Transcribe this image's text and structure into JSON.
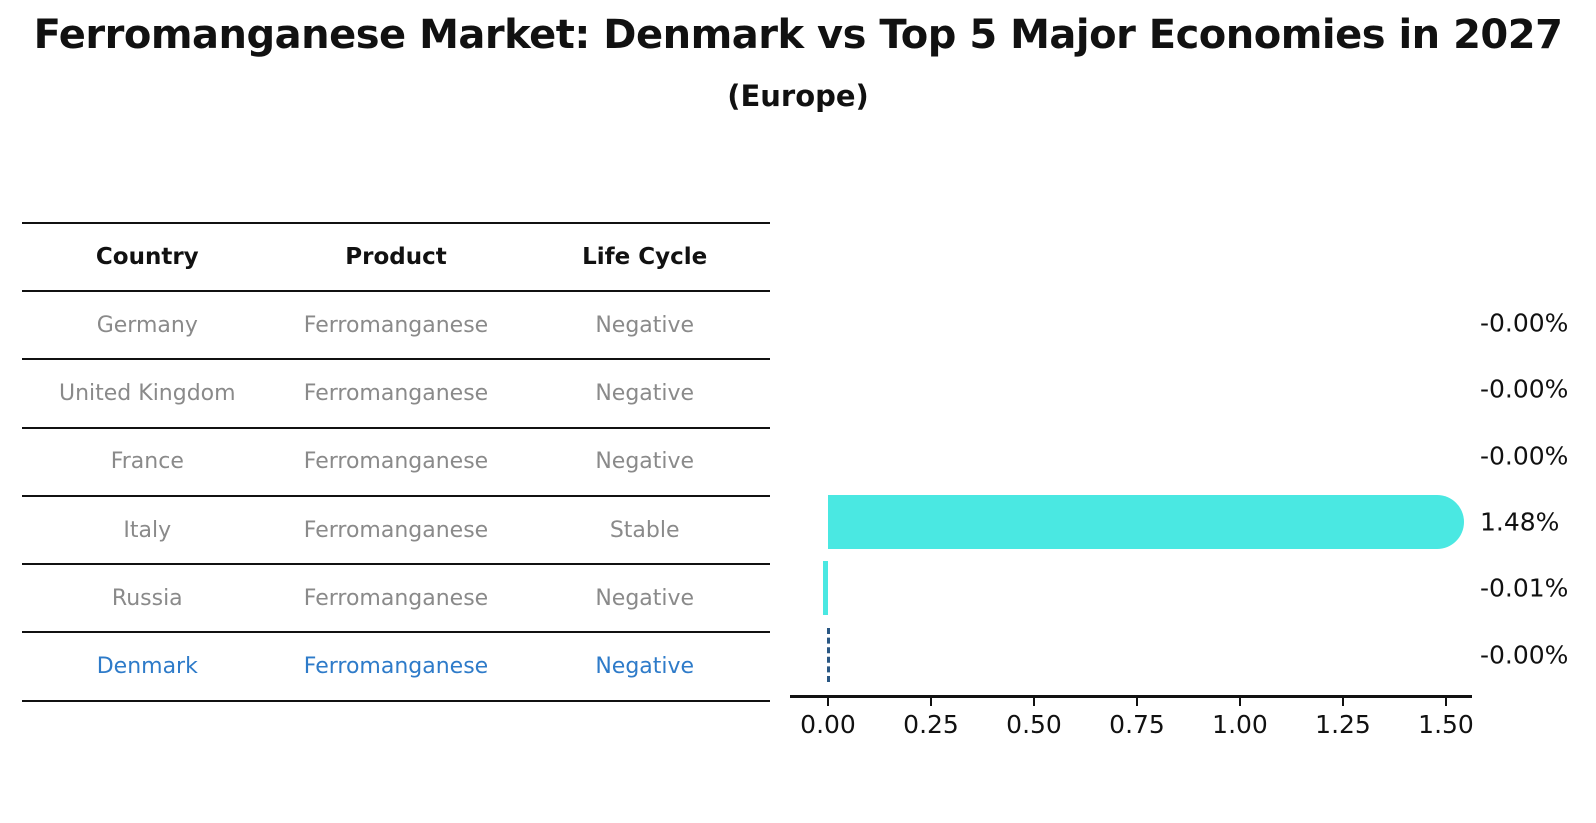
{
  "title": "Ferromanganese Market: Denmark vs Top 5 Major Economies in 2027",
  "subtitle": "(Europe)",
  "table": {
    "headers": [
      "Country",
      "Product",
      "Life Cycle"
    ],
    "rows": [
      {
        "country": "Germany",
        "product": "Ferromanganese",
        "life_cycle": "Negative",
        "highlighted": false
      },
      {
        "country": "United Kingdom",
        "product": "Ferromanganese",
        "life_cycle": "Negative",
        "highlighted": false
      },
      {
        "country": "France",
        "product": "Ferromanganese",
        "life_cycle": "Negative",
        "highlighted": false
      },
      {
        "country": "Italy",
        "product": "Ferromanganese",
        "life_cycle": "Stable",
        "highlighted": false
      },
      {
        "country": "Russia",
        "product": "Ferromanganese",
        "life_cycle": "Negative",
        "highlighted": false
      },
      {
        "country": "Denmark",
        "product": "Ferromanganese",
        "life_cycle": "Negative",
        "highlighted": true
      }
    ]
  },
  "chart_data": {
    "type": "bar",
    "orientation": "horizontal",
    "title": "Ferromanganese Market: Denmark vs Top 5 Major Economies in 2027 (Europe)",
    "categories": [
      "Germany",
      "United Kingdom",
      "France",
      "Italy",
      "Russia",
      "Denmark"
    ],
    "values": [
      -0.0,
      -0.0,
      -0.0,
      1.48,
      -0.01,
      -0.0
    ],
    "value_labels": [
      "-0.00%",
      "-0.00%",
      "-0.00%",
      "1.48%",
      "-0.01%",
      "-0.00%"
    ],
    "unit": "percent",
    "x_ticks": [
      0.0,
      0.25,
      0.5,
      0.75,
      1.0,
      1.25,
      1.5
    ],
    "x_tick_labels": [
      "0.00",
      "0.25",
      "0.50",
      "0.75",
      "1.00",
      "1.25",
      "1.50"
    ],
    "xlim": [
      -0.09,
      1.56
    ],
    "grid": false,
    "legend": "none",
    "bar_color": "#4ae8e2",
    "value_label_color": "#111111",
    "highlight": {
      "category": "Denmark",
      "style": "dashed-outline",
      "color": "#2a5783"
    }
  },
  "colors": {
    "background": "#ffffff",
    "bar": "#4ae8e2",
    "highlight_dash": "#2a5783",
    "highlight_text": "#2e7bc9",
    "muted_text": "#8a8a8a",
    "text": "#111111"
  }
}
